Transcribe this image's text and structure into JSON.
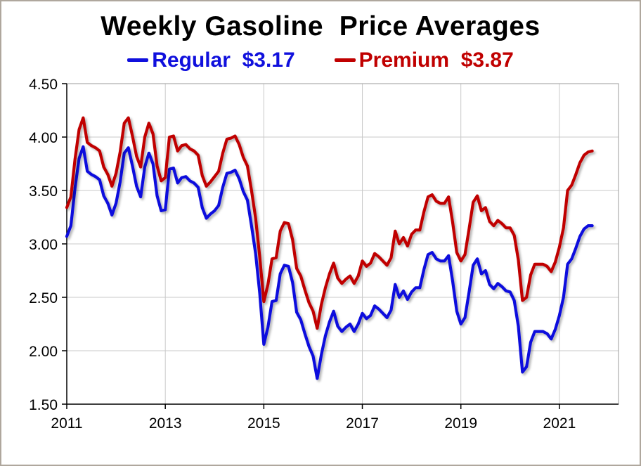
{
  "title": "Weekly Gasoline  Price Averages",
  "legend": {
    "items": [
      {
        "name": "Regular",
        "price": "$3.17",
        "label": "Regular  $3.17",
        "color": "#1010dd"
      },
      {
        "name": "Premium",
        "price": "$3.87",
        "label": "Premium  $3.87",
        "color": "#c00000"
      }
    ]
  },
  "colors": {
    "regular_line": "#1010dd",
    "premium_line": "#c00000",
    "grid": "#c9c9c9",
    "plot_border": "#9b9b9b",
    "axis": "#000000",
    "frame_border": "#afa79d",
    "background": "#ffffff"
  },
  "chart_data": {
    "type": "line",
    "title": "Weekly Gasoline  Price Averages",
    "xlabel": "",
    "ylabel": "",
    "x_unit": "year (monthly samples of weekly averages)",
    "y_unit": "dollars per gallon",
    "grid": true,
    "legend_position": "top",
    "xlim": [
      2011,
      2022.2
    ],
    "ylim": [
      1.5,
      4.5
    ],
    "x_ticks": [
      2011,
      2013,
      2015,
      2017,
      2019,
      2021
    ],
    "x_tick_labels": [
      "2011",
      "2013",
      "2015",
      "2017",
      "2019",
      "2021"
    ],
    "y_ticks": [
      1.5,
      2.0,
      2.5,
      3.0,
      3.5,
      4.0,
      4.5
    ],
    "y_tick_labels": [
      "1.50",
      "2.00",
      "2.50",
      "3.00",
      "3.50",
      "4.00",
      "4.50"
    ],
    "x_start_year": 2011.0,
    "x_step_years": 0.0833333,
    "series": [
      {
        "name": "Regular",
        "latest_label": "$3.17",
        "color": "#1010dd",
        "values": [
          3.07,
          3.17,
          3.52,
          3.8,
          3.91,
          3.68,
          3.65,
          3.63,
          3.6,
          3.45,
          3.38,
          3.27,
          3.38,
          3.58,
          3.85,
          3.9,
          3.73,
          3.54,
          3.44,
          3.72,
          3.85,
          3.75,
          3.45,
          3.31,
          3.32,
          3.7,
          3.71,
          3.57,
          3.62,
          3.63,
          3.59,
          3.57,
          3.53,
          3.34,
          3.24,
          3.28,
          3.31,
          3.36,
          3.53,
          3.66,
          3.67,
          3.69,
          3.61,
          3.49,
          3.41,
          3.17,
          2.91,
          2.54,
          2.06,
          2.22,
          2.46,
          2.47,
          2.72,
          2.8,
          2.79,
          2.64,
          2.36,
          2.29,
          2.16,
          2.04,
          1.95,
          1.74,
          1.96,
          2.14,
          2.27,
          2.37,
          2.23,
          2.18,
          2.22,
          2.25,
          2.18,
          2.25,
          2.35,
          2.3,
          2.33,
          2.42,
          2.39,
          2.35,
          2.31,
          2.38,
          2.62,
          2.5,
          2.56,
          2.48,
          2.55,
          2.59,
          2.59,
          2.76,
          2.9,
          2.92,
          2.86,
          2.84,
          2.84,
          2.89,
          2.65,
          2.37,
          2.25,
          2.31,
          2.55,
          2.8,
          2.86,
          2.72,
          2.75,
          2.62,
          2.58,
          2.63,
          2.6,
          2.56,
          2.55,
          2.47,
          2.23,
          1.8,
          1.85,
          2.08,
          2.18,
          2.18,
          2.18,
          2.16,
          2.11,
          2.2,
          2.33,
          2.5,
          2.81,
          2.86,
          2.96,
          3.07,
          3.14,
          3.17,
          3.17
        ]
      },
      {
        "name": "Premium",
        "latest_label": "$3.87",
        "color": "#c00000",
        "values": [
          3.34,
          3.44,
          3.79,
          4.07,
          4.18,
          3.95,
          3.92,
          3.9,
          3.87,
          3.72,
          3.65,
          3.54,
          3.66,
          3.86,
          4.13,
          4.18,
          4.01,
          3.82,
          3.72,
          4.0,
          4.13,
          4.03,
          3.73,
          3.59,
          3.62,
          4.0,
          4.01,
          3.87,
          3.92,
          3.93,
          3.89,
          3.87,
          3.83,
          3.64,
          3.54,
          3.58,
          3.63,
          3.68,
          3.85,
          3.98,
          3.99,
          4.01,
          3.93,
          3.81,
          3.73,
          3.5,
          3.24,
          2.88,
          2.46,
          2.62,
          2.86,
          2.87,
          3.12,
          3.2,
          3.19,
          3.04,
          2.77,
          2.7,
          2.57,
          2.45,
          2.37,
          2.21,
          2.43,
          2.59,
          2.72,
          2.82,
          2.68,
          2.63,
          2.67,
          2.7,
          2.63,
          2.7,
          2.84,
          2.79,
          2.82,
          2.91,
          2.88,
          2.84,
          2.8,
          2.87,
          3.12,
          3.0,
          3.06,
          2.98,
          3.09,
          3.13,
          3.13,
          3.3,
          3.44,
          3.46,
          3.4,
          3.38,
          3.38,
          3.44,
          3.2,
          2.92,
          2.84,
          2.9,
          3.14,
          3.39,
          3.45,
          3.31,
          3.34,
          3.21,
          3.17,
          3.22,
          3.19,
          3.15,
          3.15,
          3.08,
          2.85,
          2.47,
          2.5,
          2.71,
          2.81,
          2.81,
          2.81,
          2.79,
          2.74,
          2.83,
          2.97,
          3.15,
          3.5,
          3.55,
          3.65,
          3.76,
          3.83,
          3.86,
          3.87
        ]
      }
    ]
  }
}
